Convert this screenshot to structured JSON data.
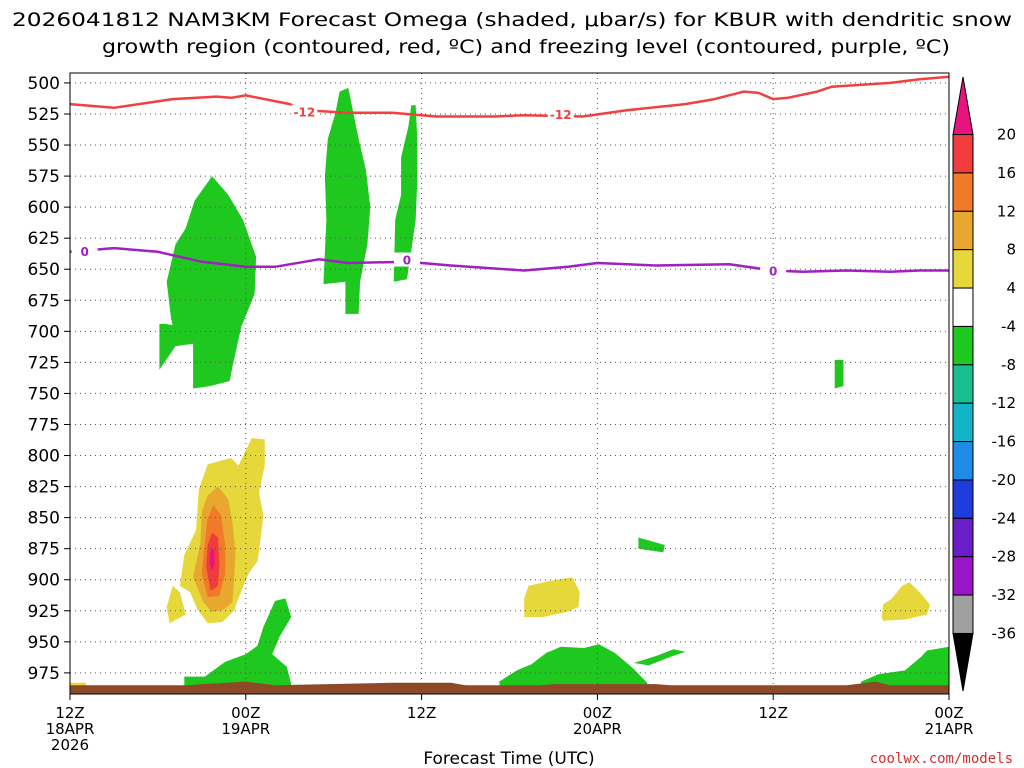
{
  "title": {
    "line1": "2026041812 NAM3KM Forecast Omega (shaded, μbar/s) for KBUR with dendritic snow",
    "line2": "growth region (contoured, red, ºC) and freezing level (contoured, purple, ºC)"
  },
  "credit": "coolwx.com/models",
  "chart_data": {
    "type": "heatmap",
    "title": "2026041812 NAM3KM Forecast Omega (shaded, μbar/s) for KBUR with dendritic snow growth region (contoured, red, ºC) and freezing level (contoured, purple, ºC)",
    "xlabel": "Forecast Time (UTC)",
    "ylabel": "",
    "x_unit": "forecast hour from 2026-04-18 12Z",
    "xlim": [
      0,
      60
    ],
    "ylim": [
      992,
      492
    ],
    "y_scale": "pressure (hPa), reversed",
    "grid": true,
    "x_ticks": [
      {
        "h": 0,
        "lines": [
          "12Z",
          "18APR",
          "2026"
        ]
      },
      {
        "h": 12,
        "lines": [
          "00Z",
          "19APR"
        ]
      },
      {
        "h": 24,
        "lines": [
          "12Z"
        ]
      },
      {
        "h": 36,
        "lines": [
          "00Z",
          "20APR"
        ]
      },
      {
        "h": 48,
        "lines": [
          "12Z"
        ]
      },
      {
        "h": 60,
        "lines": [
          "00Z",
          "21APR"
        ]
      }
    ],
    "y_ticks": [
      500,
      525,
      550,
      575,
      600,
      625,
      650,
      675,
      700,
      725,
      750,
      775,
      800,
      825,
      850,
      875,
      900,
      925,
      950,
      975
    ],
    "colorbar": {
      "unit": "μbar/s",
      "labels": [
        "20",
        "16",
        "12",
        "8",
        "4",
        "-4",
        "-8",
        "-12",
        "-16",
        "-20",
        "-24",
        "-28",
        "-32",
        "-36"
      ],
      "bins": [
        {
          "from": 20,
          "to": 24,
          "color": "#e8137e"
        },
        {
          "from": 16,
          "to": 20,
          "color": "#f03c3c"
        },
        {
          "from": 12,
          "to": 16,
          "color": "#f07a28"
        },
        {
          "from": 8,
          "to": 12,
          "color": "#e8a830"
        },
        {
          "from": 4,
          "to": 8,
          "color": "#e6d83a"
        },
        {
          "from": -4,
          "to": 4,
          "color": "#ffffff"
        },
        {
          "from": -8,
          "to": -4,
          "color": "#1ec81e"
        },
        {
          "from": -12,
          "to": -8,
          "color": "#18c090"
        },
        {
          "from": -16,
          "to": -12,
          "color": "#14b4c8"
        },
        {
          "from": -20,
          "to": -16,
          "color": "#1e8ce6"
        },
        {
          "from": -24,
          "to": -20,
          "color": "#1e3cdc"
        },
        {
          "from": -28,
          "to": -24,
          "color": "#6a1ec8"
        },
        {
          "from": -32,
          "to": -28,
          "color": "#9a14c8"
        },
        {
          "from": -36,
          "to": -32,
          "color": "#a0a0a0"
        },
        {
          "from": -40,
          "to": -36,
          "color": "#000000"
        }
      ]
    },
    "colors": {
      "terrain": "#8c4a28",
      "dgz_contour": "#f04040",
      "freezing_contour": "#a020c0"
    },
    "contours": [
      {
        "name": "dendritic growth region",
        "value": -12,
        "label": "-12",
        "color": "#f04040",
        "label_at": [
          [
            16,
            524
          ],
          [
            33.5,
            526
          ]
        ],
        "points": [
          [
            0,
            517
          ],
          [
            3,
            520
          ],
          [
            7,
            513
          ],
          [
            10,
            511
          ],
          [
            11,
            512
          ],
          [
            12,
            510
          ],
          [
            15,
            517
          ],
          [
            16,
            522
          ],
          [
            19,
            524
          ],
          [
            22,
            524
          ],
          [
            25,
            527
          ],
          [
            29,
            527
          ],
          [
            31,
            526
          ],
          [
            35,
            527
          ],
          [
            38,
            522
          ],
          [
            42,
            517
          ],
          [
            44,
            513
          ],
          [
            46,
            507
          ],
          [
            47,
            508
          ],
          [
            48,
            513
          ],
          [
            49,
            512
          ],
          [
            51,
            507
          ],
          [
            52,
            503
          ],
          [
            56,
            500
          ],
          [
            58,
            497
          ],
          [
            60,
            495
          ]
        ]
      },
      {
        "name": "freezing level",
        "value": 0,
        "label": "0",
        "color": "#a020c0",
        "label_at": [
          [
            1,
            636
          ],
          [
            23,
            643
          ],
          [
            48,
            652
          ]
        ],
        "points": [
          [
            0,
            636
          ],
          [
            3,
            633
          ],
          [
            6,
            636
          ],
          [
            9,
            644
          ],
          [
            12,
            648
          ],
          [
            14,
            648
          ],
          [
            17,
            642
          ],
          [
            19,
            645
          ],
          [
            23,
            644
          ],
          [
            26,
            647
          ],
          [
            31,
            651
          ],
          [
            34,
            648
          ],
          [
            36,
            645
          ],
          [
            40,
            647
          ],
          [
            45,
            646
          ],
          [
            48,
            651
          ],
          [
            50,
            652
          ],
          [
            53,
            651
          ],
          [
            56,
            652
          ],
          [
            58,
            651
          ],
          [
            60,
            651
          ]
        ]
      }
    ],
    "regions": [
      {
        "value": -6,
        "points": [
          [
            6.1,
            694
          ],
          [
            6.1,
            731
          ],
          [
            7.2,
            712
          ],
          [
            8.4,
            710
          ],
          [
            8.4,
            725
          ],
          [
            8.4,
            746
          ],
          [
            9.6,
            744
          ],
          [
            10.9,
            740
          ],
          [
            11.1,
            728
          ],
          [
            11.7,
            696
          ],
          [
            12.6,
            670
          ],
          [
            12.7,
            640
          ],
          [
            11.8,
            610
          ],
          [
            10.8,
            590
          ],
          [
            9.7,
            575
          ],
          [
            8.5,
            595
          ],
          [
            7.9,
            617
          ],
          [
            7.2,
            630
          ],
          [
            6.6,
            660
          ],
          [
            6.9,
            690
          ],
          [
            7.0,
            695
          ],
          [
            6.5,
            694
          ]
        ]
      },
      {
        "value": -6,
        "points": [
          [
            17.3,
            662
          ],
          [
            17.5,
            610
          ],
          [
            17.4,
            575
          ],
          [
            17.6,
            545
          ],
          [
            18.1,
            525
          ],
          [
            18.4,
            507
          ],
          [
            19.0,
            504
          ],
          [
            19.7,
            545
          ],
          [
            20.2,
            570
          ],
          [
            20.5,
            600
          ],
          [
            20.3,
            630
          ],
          [
            19.8,
            660
          ],
          [
            19.7,
            686
          ],
          [
            18.8,
            686
          ],
          [
            18.8,
            660
          ]
        ]
      },
      {
        "value": -6,
        "points": [
          [
            22.1,
            660
          ],
          [
            22.2,
            610
          ],
          [
            22.6,
            590
          ],
          [
            22.6,
            560
          ],
          [
            23.1,
            535
          ],
          [
            23.3,
            518
          ],
          [
            23.6,
            518
          ],
          [
            23.7,
            545
          ],
          [
            23.7,
            580
          ],
          [
            23.6,
            610
          ],
          [
            23.3,
            635
          ],
          [
            23.1,
            650
          ],
          [
            23.0,
            658
          ]
        ]
      },
      {
        "value": -6,
        "points": [
          [
            52.2,
            723
          ],
          [
            52.2,
            746
          ],
          [
            52.8,
            744
          ],
          [
            52.8,
            723
          ]
        ]
      },
      {
        "value": -6,
        "points": [
          [
            38.8,
            866
          ],
          [
            38.8,
            875
          ],
          [
            40.5,
            878
          ],
          [
            40.6,
            872
          ]
        ]
      },
      {
        "value": -6,
        "points": [
          [
            7.8,
            992
          ],
          [
            7.8,
            978
          ],
          [
            9.5,
            978
          ],
          [
            9.5,
            992
          ]
        ]
      },
      {
        "value": -6,
        "points": [
          [
            9.2,
            978
          ],
          [
            10.6,
            966
          ],
          [
            12.0,
            960
          ],
          [
            12.8,
            953
          ],
          [
            13.2,
            938
          ],
          [
            14.0,
            917
          ],
          [
            14.7,
            915
          ],
          [
            15.1,
            930
          ],
          [
            14.3,
            946
          ],
          [
            13.8,
            960
          ],
          [
            14.8,
            970
          ],
          [
            15.1,
            984
          ],
          [
            15.0,
            992
          ],
          [
            9.2,
            992
          ]
        ]
      },
      {
        "value": -6,
        "points": [
          [
            29.4,
            992
          ],
          [
            29.3,
            982
          ],
          [
            30.5,
            973
          ],
          [
            31.5,
            968
          ],
          [
            32.5,
            959
          ],
          [
            33.5,
            954
          ],
          [
            35.1,
            955
          ],
          [
            36.1,
            952
          ],
          [
            37.2,
            959
          ],
          [
            38.4,
            971
          ],
          [
            39.4,
            983
          ],
          [
            39.5,
            992
          ]
        ]
      },
      {
        "value": -6,
        "points": [
          [
            38.5,
            967
          ],
          [
            40.1,
            961
          ],
          [
            41.2,
            956
          ],
          [
            42.0,
            958
          ],
          [
            41.0,
            962
          ],
          [
            39.5,
            969
          ]
        ]
      },
      {
        "value": -6,
        "points": [
          [
            54.0,
            982
          ],
          [
            55.2,
            976
          ],
          [
            57.0,
            973
          ],
          [
            58.1,
            962
          ],
          [
            58.5,
            957
          ],
          [
            60.0,
            954
          ],
          [
            60.0,
            992
          ],
          [
            54.0,
            992
          ]
        ]
      },
      {
        "value": 6,
        "points": [
          [
            6.6,
            922
          ],
          [
            6.8,
            935
          ],
          [
            7.9,
            928
          ],
          [
            7.5,
            910
          ],
          [
            7.0,
            905
          ]
        ]
      },
      {
        "value": 6,
        "points": [
          [
            7.5,
            905
          ],
          [
            7.8,
            880
          ],
          [
            8.6,
            860
          ],
          [
            8.7,
            843
          ],
          [
            8.8,
            827
          ],
          [
            9.4,
            807
          ],
          [
            11.0,
            802
          ],
          [
            11.5,
            808
          ],
          [
            12.4,
            786
          ],
          [
            13.3,
            787
          ],
          [
            13.3,
            808
          ],
          [
            12.9,
            830
          ],
          [
            13.2,
            848
          ],
          [
            13.0,
            868
          ],
          [
            12.8,
            885
          ],
          [
            12.2,
            895
          ],
          [
            11.8,
            906
          ],
          [
            11.4,
            918
          ],
          [
            11.2,
            925
          ],
          [
            10.4,
            934
          ],
          [
            9.4,
            935
          ],
          [
            8.7,
            924
          ],
          [
            8.2,
            910
          ]
        ]
      },
      {
        "value": 6,
        "points": [
          [
            31.3,
            905
          ],
          [
            32.7,
            901
          ],
          [
            34.3,
            898
          ],
          [
            34.8,
            910
          ],
          [
            34.7,
            922
          ],
          [
            33.9,
            926
          ],
          [
            32.3,
            930
          ],
          [
            31.0,
            930
          ],
          [
            31.0,
            915
          ]
        ]
      },
      {
        "value": 6,
        "points": [
          [
            55.4,
            930
          ],
          [
            55.5,
            920
          ],
          [
            56.1,
            915
          ],
          [
            56.8,
            905
          ],
          [
            57.3,
            902
          ],
          [
            58.0,
            910
          ],
          [
            58.7,
            920
          ],
          [
            58.5,
            928
          ],
          [
            57.0,
            932
          ],
          [
            55.5,
            933
          ]
        ]
      },
      {
        "value": 10,
        "points": [
          [
            8.4,
            898
          ],
          [
            8.9,
            870
          ],
          [
            9.0,
            845
          ],
          [
            9.4,
            832
          ],
          [
            10.1,
            825
          ],
          [
            10.8,
            835
          ],
          [
            11.1,
            855
          ],
          [
            11.3,
            878
          ],
          [
            11.2,
            900
          ],
          [
            11.1,
            918
          ],
          [
            10.5,
            924
          ],
          [
            9.7,
            926
          ],
          [
            9.1,
            918
          ]
        ]
      },
      {
        "value": 14,
        "points": [
          [
            9.0,
            895
          ],
          [
            9.2,
            870
          ],
          [
            9.4,
            850
          ],
          [
            9.8,
            840
          ],
          [
            10.3,
            848
          ],
          [
            10.6,
            872
          ],
          [
            10.6,
            895
          ],
          [
            10.2,
            913
          ],
          [
            9.4,
            914
          ]
        ]
      },
      {
        "value": 18,
        "points": [
          [
            9.3,
            890
          ],
          [
            9.4,
            872
          ],
          [
            9.7,
            862
          ],
          [
            10.1,
            866
          ],
          [
            10.2,
            888
          ],
          [
            10.1,
            905
          ],
          [
            9.6,
            909
          ]
        ]
      },
      {
        "value": 22,
        "points": [
          [
            9.55,
            880
          ],
          [
            9.7,
            874
          ],
          [
            9.85,
            878
          ],
          [
            9.85,
            888
          ],
          [
            9.7,
            893
          ],
          [
            9.55,
            888
          ]
        ]
      },
      {
        "value": 6,
        "points": [
          [
            0.0,
            983
          ],
          [
            1.1,
            983
          ],
          [
            1.1,
            987
          ],
          [
            0.0,
            987
          ]
        ]
      }
    ],
    "terrain": {
      "label": "surface",
      "points": [
        [
          0,
          985
        ],
        [
          8,
          985
        ],
        [
          9,
          984
        ],
        [
          12,
          982
        ],
        [
          14,
          985
        ],
        [
          22,
          983
        ],
        [
          26,
          983
        ],
        [
          27,
          985
        ],
        [
          32,
          985
        ],
        [
          33,
          984
        ],
        [
          40,
          984
        ],
        [
          41,
          985
        ],
        [
          53,
          985
        ],
        [
          55,
          982
        ],
        [
          56,
          985
        ],
        [
          60,
          985
        ]
      ]
    }
  }
}
